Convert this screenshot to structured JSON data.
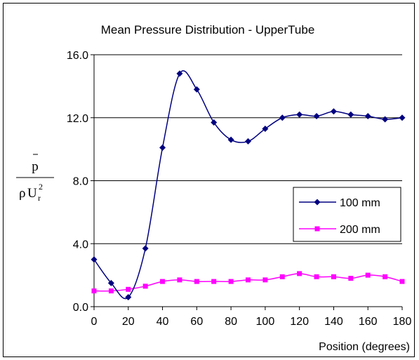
{
  "chart_data": {
    "type": "line",
    "title": "Mean Pressure Distribution - UpperTube",
    "xlabel": "Position (degrees)",
    "ylabel": {
      "numerator": "p",
      "denominator_rho": "ρ",
      "denominator_U": "U",
      "subscript": "r",
      "superscript": "2"
    },
    "xlim": [
      0,
      180
    ],
    "ylim": [
      0,
      16
    ],
    "xticks": [
      0,
      20,
      40,
      60,
      80,
      100,
      120,
      140,
      160,
      180
    ],
    "yticks": [
      0,
      4,
      8,
      12,
      16
    ],
    "ytick_labels": [
      "0.0",
      "4.0",
      "8.0",
      "12.0",
      "16.0"
    ],
    "grid": "horizontal",
    "legend_position": "right",
    "x": [
      0,
      10,
      20,
      30,
      40,
      50,
      60,
      70,
      80,
      90,
      100,
      110,
      120,
      130,
      140,
      150,
      160,
      170,
      180
    ],
    "series": [
      {
        "name": "100 mm",
        "color": "#000080",
        "marker": "diamond",
        "values": [
          3.0,
          1.5,
          0.6,
          3.7,
          10.1,
          14.8,
          13.8,
          11.7,
          10.6,
          10.5,
          11.3,
          12.0,
          12.2,
          12.1,
          12.4,
          12.2,
          12.1,
          11.9,
          12.0
        ]
      },
      {
        "name": "200 mm",
        "color": "#ff00ff",
        "marker": "square",
        "values": [
          1.0,
          1.0,
          1.1,
          1.3,
          1.6,
          1.7,
          1.6,
          1.6,
          1.6,
          1.7,
          1.7,
          1.9,
          2.1,
          1.9,
          1.9,
          1.8,
          2.0,
          1.9,
          1.6
        ]
      }
    ]
  }
}
